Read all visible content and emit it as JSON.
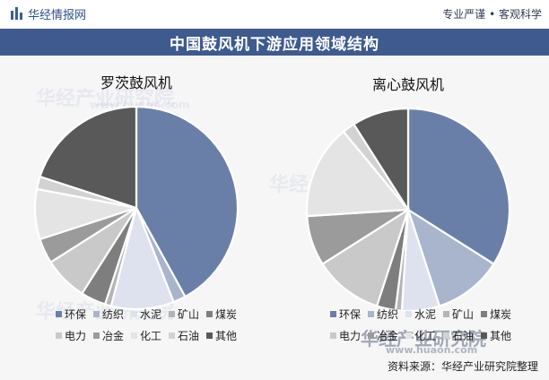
{
  "header": {
    "brand_name": "华经情报网",
    "slogan": "专业严谨 • 客观科学"
  },
  "title": "中国鼓风机下游应用领域结构",
  "colors": [
    "#6a7fa8",
    "#a9b4cd",
    "#dde2ee",
    "#b4b4b4",
    "#7e7e7e",
    "#c9c9c9",
    "#9b9b9b",
    "#e4e4e4",
    "#d2d2d2",
    "#595959"
  ],
  "legend_rows": [
    [
      "环保",
      "纺织",
      "水泥",
      "矿山",
      "煤炭"
    ],
    [
      "电力",
      "冶金",
      "化工",
      "石油",
      "其他"
    ]
  ],
  "chart_data": [
    {
      "type": "pie",
      "title": "罗茨鼓风机",
      "categories": [
        "环保",
        "纺织",
        "水泥",
        "矿山",
        "煤炭",
        "电力",
        "冶金",
        "化工",
        "石油",
        "其他"
      ],
      "values": [
        42,
        2,
        10,
        1,
        4,
        7,
        4,
        8,
        2,
        20
      ]
    },
    {
      "type": "pie",
      "title": "离心鼓风机",
      "categories": [
        "环保",
        "纺织",
        "水泥",
        "矿山",
        "煤炭",
        "电力",
        "冶金",
        "化工",
        "石油",
        "其他"
      ],
      "values": [
        34,
        11,
        6,
        1,
        3,
        11,
        8,
        15,
        2,
        9
      ]
    }
  ],
  "source": "资料来源：华经产业研究院整理",
  "watermark": {
    "brand": "华经产业研究院",
    "url": "www.huaon.com"
  }
}
